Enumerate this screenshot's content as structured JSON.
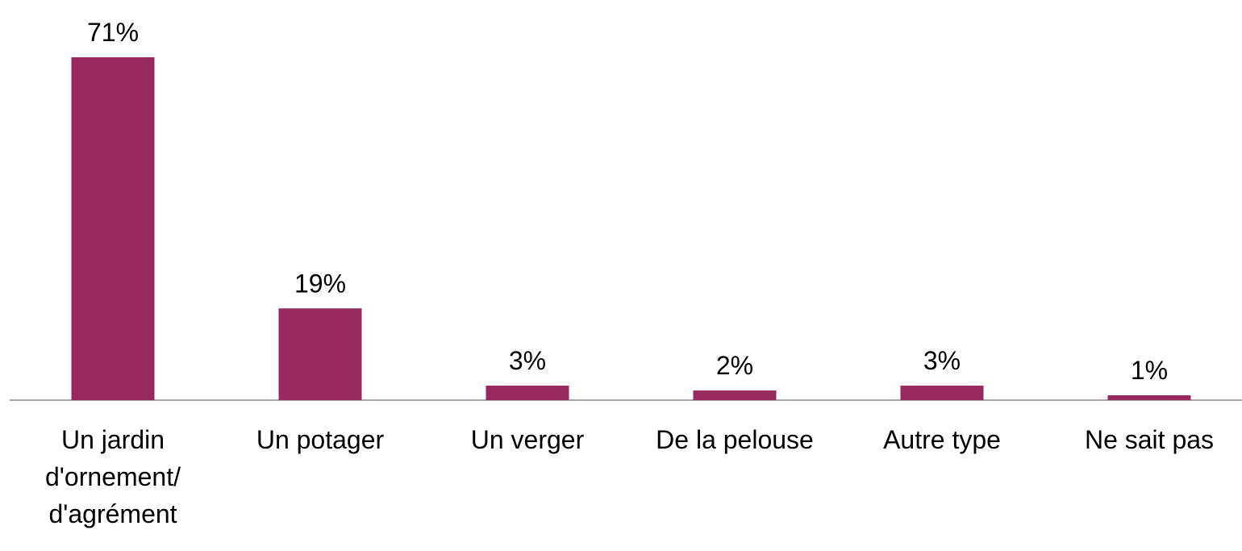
{
  "chart_data": {
    "type": "bar",
    "categories": [
      "Un jardin d'ornement/ d'agrément",
      "Un potager",
      "Un verger",
      "De la pelouse",
      "Autre type",
      "Ne sait pas"
    ],
    "values": [
      71,
      19,
      3,
      2,
      3,
      1
    ],
    "value_labels": [
      "71%",
      "19%",
      "3%",
      "2%",
      "3%",
      "1%"
    ],
    "color": "#97295e"
  }
}
